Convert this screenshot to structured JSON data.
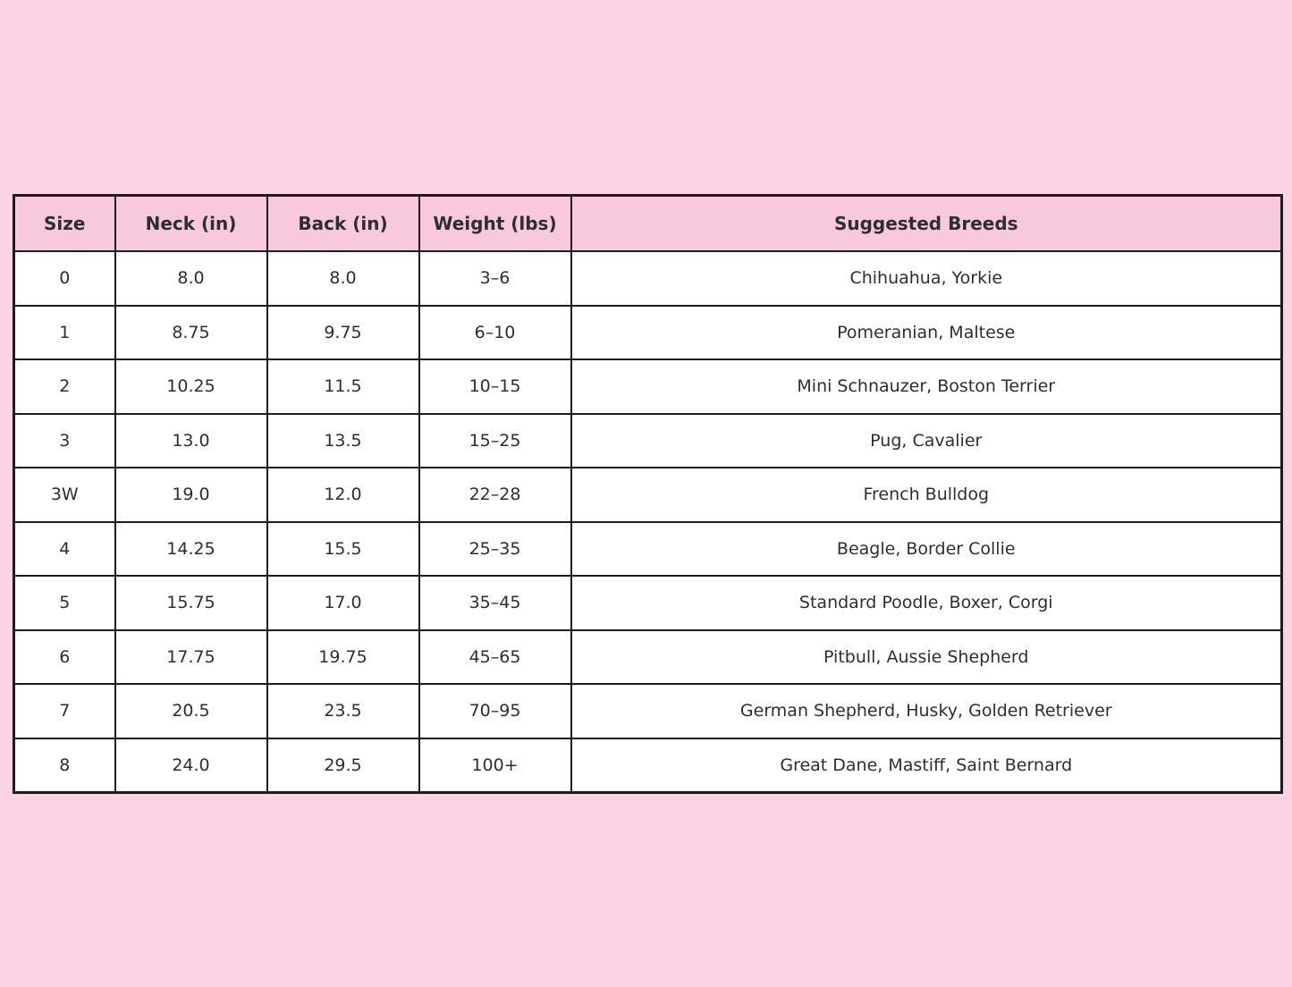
{
  "page": {
    "background_color": "#FBD3E5"
  },
  "table": {
    "header_background": "#F8C8DC",
    "border_color": "#1C1C1C",
    "text_color": "#2E2E2E",
    "columns": [
      "Size",
      "Neck (in)",
      "Back (in)",
      "Weight (lbs)",
      "Suggested Breeds"
    ],
    "rows": [
      {
        "size": "0",
        "neck": "8.0",
        "back": "8.0",
        "weight": "3–6",
        "breeds": "Chihuahua, Yorkie"
      },
      {
        "size": "1",
        "neck": "8.75",
        "back": "9.75",
        "weight": "6–10",
        "breeds": "Pomeranian, Maltese"
      },
      {
        "size": "2",
        "neck": "10.25",
        "back": "11.5",
        "weight": "10–15",
        "breeds": "Mini Schnauzer, Boston Terrier"
      },
      {
        "size": "3",
        "neck": "13.0",
        "back": "13.5",
        "weight": "15–25",
        "breeds": "Pug, Cavalier"
      },
      {
        "size": "3W",
        "neck": "19.0",
        "back": "12.0",
        "weight": "22–28",
        "breeds": "French Bulldog"
      },
      {
        "size": "4",
        "neck": "14.25",
        "back": "15.5",
        "weight": "25–35",
        "breeds": "Beagle, Border Collie"
      },
      {
        "size": "5",
        "neck": "15.75",
        "back": "17.0",
        "weight": "35–45",
        "breeds": "Standard Poodle, Boxer, Corgi"
      },
      {
        "size": "6",
        "neck": "17.75",
        "back": "19.75",
        "weight": "45–65",
        "breeds": "Pitbull, Aussie Shepherd"
      },
      {
        "size": "7",
        "neck": "20.5",
        "back": "23.5",
        "weight": "70–95",
        "breeds": "German Shepherd, Husky, Golden Retriever"
      },
      {
        "size": "8",
        "neck": "24.0",
        "back": "29.5",
        "weight": "100+",
        "breeds": "Great Dane, Mastiff, Saint Bernard"
      }
    ]
  }
}
